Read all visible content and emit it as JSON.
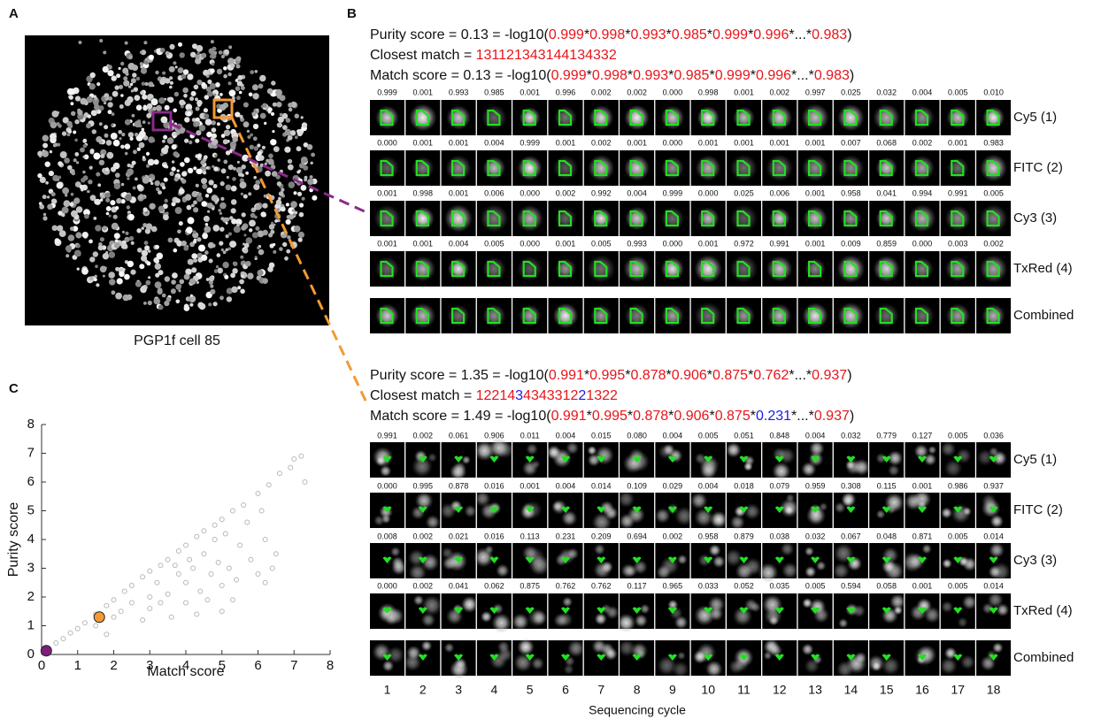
{
  "panel_labels": [
    "A",
    "B",
    "C"
  ],
  "image_caption": "PGP1f cell 85",
  "separator": "*",
  "cycles": [
    1,
    2,
    3,
    4,
    5,
    6,
    7,
    8,
    9,
    10,
    11,
    12,
    13,
    14,
    15,
    16,
    17,
    18
  ],
  "cycle_axis_label": "Sequencing cycle",
  "groups": [
    {
      "purity": {
        "prefix": "Purity score = 0.13 = -log10(",
        "factors": [
          "0.999",
          "0.998",
          "0.993",
          "0.985",
          "0.999",
          "0.996",
          "...",
          "0.983"
        ],
        "factor_colors": [
          "#e8141a",
          "#e8141a",
          "#e8141a",
          "#e8141a",
          "#e8141a",
          "#e8141a",
          "#111111",
          "#e8141a"
        ],
        "suffix": ")"
      },
      "closest": {
        "prefix": "Closest match = ",
        "digits": [
          "1",
          "3",
          "1",
          "1",
          "2",
          "1",
          "3",
          "4",
          "3",
          "1",
          "4",
          "4",
          "1",
          "3",
          "4",
          "3",
          "3",
          "2"
        ]
      },
      "match": {
        "prefix": "Match score = 0.13 = -log10(",
        "factors": [
          "0.999",
          "0.998",
          "0.993",
          "0.985",
          "0.999",
          "0.996",
          "...",
          "0.983"
        ],
        "factor_colors": [
          "#e8141a",
          "#e8141a",
          "#e8141a",
          "#e8141a",
          "#e8141a",
          "#e8141a",
          "#111111",
          "#e8141a"
        ],
        "suffix": ")"
      },
      "rows": [
        {
          "channel": "Cy5 (1)",
          "scores": [
            "0.999",
            "0.001",
            "0.993",
            "0.985",
            "0.001",
            "0.996",
            "0.002",
            "0.002",
            "0.000",
            "0.998",
            "0.001",
            "0.002",
            "0.997",
            "0.025",
            "0.032",
            "0.004",
            "0.005",
            "0.010"
          ]
        },
        {
          "channel": "FITC (2)",
          "scores": [
            "0.000",
            "0.001",
            "0.001",
            "0.004",
            "0.999",
            "0.001",
            "0.002",
            "0.001",
            "0.000",
            "0.001",
            "0.001",
            "0.001",
            "0.001",
            "0.007",
            "0.068",
            "0.002",
            "0.001",
            "0.983"
          ]
        },
        {
          "channel": "Cy3 (3)",
          "scores": [
            "0.001",
            "0.998",
            "0.001",
            "0.006",
            "0.000",
            "0.002",
            "0.992",
            "0.004",
            "0.999",
            "0.000",
            "0.025",
            "0.006",
            "0.001",
            "0.958",
            "0.041",
            "0.994",
            "0.991",
            "0.005"
          ]
        },
        {
          "channel": "TxRed (4)",
          "scores": [
            "0.001",
            "0.001",
            "0.004",
            "0.005",
            "0.000",
            "0.001",
            "0.005",
            "0.993",
            "0.000",
            "0.001",
            "0.972",
            "0.991",
            "0.001",
            "0.009",
            "0.859",
            "0.000",
            "0.003",
            "0.002"
          ]
        },
        {
          "channel": "Combined"
        }
      ]
    },
    {
      "purity": {
        "prefix": "Purity score = 1.35 = -log10(",
        "factors": [
          "0.991",
          "0.995",
          "0.878",
          "0.906",
          "0.875",
          "0.762",
          "...",
          "0.937"
        ],
        "factor_colors": [
          "#e8141a",
          "#e8141a",
          "#e8141a",
          "#e8141a",
          "#e8141a",
          "#e8141a",
          "#111111",
          "#e8141a"
        ],
        "suffix": ")"
      },
      "closest": {
        "prefix": "Closest match = ",
        "digits": [
          "1",
          "2",
          "2",
          "1",
          "4",
          "3",
          "4",
          "3",
          "4",
          "3",
          "3",
          "1",
          "2",
          "2",
          "1",
          "3",
          "2",
          "2"
        ]
      },
      "match": {
        "prefix": "Match score = 1.49 = -log10(",
        "factors": [
          "0.991",
          "0.995",
          "0.878",
          "0.906",
          "0.875",
          "0.231",
          "...",
          "0.937"
        ],
        "factor_colors": [
          "#e8141a",
          "#e8141a",
          "#e8141a",
          "#e8141a",
          "#e8141a",
          "#1a1ae8",
          "#111111",
          "#e8141a"
        ],
        "suffix": ")"
      },
      "rows": [
        {
          "channel": "Cy5 (1)",
          "scores": [
            "0.991",
            "0.002",
            "0.061",
            "0.906",
            "0.011",
            "0.004",
            "0.015",
            "0.080",
            "0.004",
            "0.005",
            "0.051",
            "0.848",
            "0.004",
            "0.032",
            "0.779",
            "0.127",
            "0.005",
            "0.036"
          ]
        },
        {
          "channel": "FITC (2)",
          "scores": [
            "0.000",
            "0.995",
            "0.878",
            "0.016",
            "0.001",
            "0.004",
            "0.014",
            "0.109",
            "0.029",
            "0.004",
            "0.018",
            "0.079",
            "0.959",
            "0.308",
            "0.115",
            "0.001",
            "0.986",
            "0.937"
          ]
        },
        {
          "channel": "Cy3 (3)",
          "scores": [
            "0.008",
            "0.002",
            "0.021",
            "0.016",
            "0.113",
            "0.231",
            "0.209",
            "0.694",
            "0.002",
            "0.958",
            "0.879",
            "0.038",
            "0.032",
            "0.067",
            "0.048",
            "0.871",
            "0.005",
            "0.014"
          ]
        },
        {
          "channel": "TxRed (4)",
          "scores": [
            "0.000",
            "0.002",
            "0.041",
            "0.062",
            "0.875",
            "0.762",
            "0.762",
            "0.117",
            "0.965",
            "0.033",
            "0.052",
            "0.035",
            "0.005",
            "0.594",
            "0.058",
            "0.001",
            "0.005",
            "0.014"
          ]
        },
        {
          "channel": "Combined"
        }
      ]
    }
  ],
  "chart_data": {
    "type": "scatter",
    "x_label": "Match score",
    "y_label": "Purity score",
    "xlim": [
      0,
      8
    ],
    "ylim": [
      0,
      8
    ],
    "xticks": [
      0,
      1,
      2,
      3,
      4,
      5,
      6,
      7,
      8
    ],
    "yticks": [
      0,
      1,
      2,
      3,
      4,
      5,
      6,
      7,
      8
    ],
    "series": [
      {
        "color": "#b8b8b8",
        "x": [
          0.2,
          0.4,
          0.6,
          0.8,
          1,
          1.2,
          1.5,
          1.8,
          2,
          2.3,
          2.5,
          2.8,
          3,
          3.3,
          3.5,
          3.8,
          4,
          4.3,
          4.5,
          4.8,
          5,
          5.3,
          5.6,
          6,
          6.3,
          6.6,
          7,
          7.2,
          7.3,
          6.9,
          3,
          3.2,
          3.5,
          3.8,
          4,
          4.2,
          4.4,
          4.5,
          4.7,
          4.9,
          5,
          5.2,
          5.4,
          5.5,
          5.8,
          6,
          6.2,
          6.5,
          5,
          4,
          3.6,
          2.8,
          2.5,
          2,
          1.5,
          1.8,
          2.2,
          3,
          4.6,
          5.7,
          6.1,
          4.1,
          3.7,
          4.8,
          5.1,
          6.4,
          6.2,
          5.3,
          4.3,
          3.3
        ],
        "values": [
          0.2,
          0.4,
          0.55,
          0.75,
          0.9,
          1.1,
          1.4,
          1.7,
          1.9,
          2.2,
          2.4,
          2.7,
          2.9,
          3.1,
          3.3,
          3.6,
          3.8,
          4.1,
          4.3,
          4.5,
          4.7,
          5,
          5.2,
          5.6,
          5.9,
          6.3,
          6.8,
          6.9,
          6,
          6.5,
          2,
          2.5,
          2.1,
          2.8,
          2.5,
          3,
          2.2,
          3.5,
          2.8,
          3.2,
          2.4,
          3,
          2.6,
          3.8,
          3.3,
          2.8,
          4,
          3.5,
          1.5,
          1.8,
          1.3,
          1.2,
          1.8,
          1.3,
          1,
          0.7,
          1.5,
          1.6,
          1.9,
          4.6,
          5,
          3.3,
          3.1,
          4,
          4.2,
          3,
          2.5,
          1.9,
          1.4,
          1.8
        ]
      },
      {
        "color": "#f39a33",
        "x": [
          1.6
        ],
        "values": [
          1.3
        ]
      },
      {
        "color": "#7b1f7b",
        "x": [
          0.13
        ],
        "values": [
          0.13
        ]
      }
    ]
  }
}
